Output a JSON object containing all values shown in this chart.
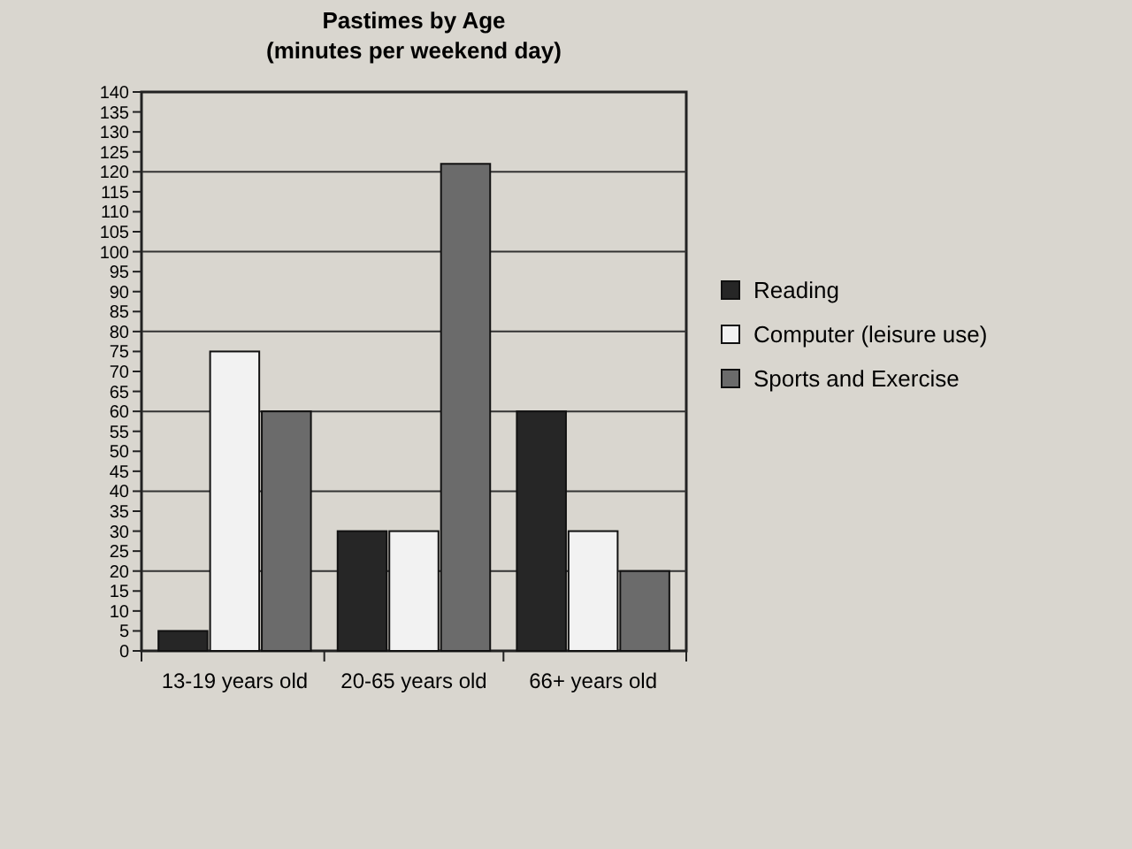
{
  "chart_data": {
    "type": "bar",
    "title": "Pastimes by Age",
    "subtitle": "(minutes per weekend day)",
    "categories": [
      "13-19 years old",
      "20-65 years old",
      "66+ years old"
    ],
    "series": [
      {
        "name": "Reading",
        "color": "#262626",
        "values": [
          5,
          30,
          60
        ]
      },
      {
        "name": "Computer (leisure use)",
        "color": "#f2f2f2",
        "values": [
          75,
          30,
          30
        ]
      },
      {
        "name": "Sports and Exercise",
        "color": "#6b6b6b",
        "values": [
          60,
          122,
          20
        ]
      }
    ],
    "ylim": [
      0,
      140
    ],
    "yticks": [
      0,
      5,
      10,
      15,
      20,
      25,
      30,
      35,
      40,
      45,
      50,
      55,
      60,
      65,
      70,
      75,
      80,
      85,
      90,
      95,
      100,
      105,
      110,
      115,
      120,
      125,
      130,
      135,
      140
    ],
    "grid": "y",
    "legend": "right"
  }
}
